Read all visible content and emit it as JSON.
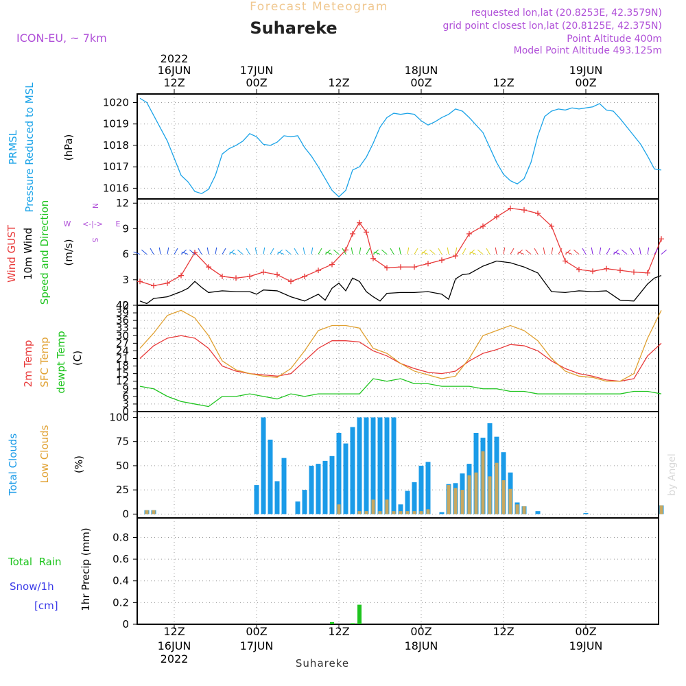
{
  "header": {
    "top_title": "Forecast Meteogram",
    "location": "Suhareke",
    "model": "ICON-EU, ~ 7km",
    "requested": "requested lon,lat (20.8253E, 42.3579N)",
    "grid_point": "grid point closest lon,lat (20.8125E, 42.375N)",
    "point_altitude": "Point Altitude 400m",
    "model_altitude": "Model Point Altitude 493.125m",
    "footer_location": "Suhareke",
    "watermark": "by Angel"
  },
  "colors": {
    "pressure": "#1aa3e8",
    "gust": "#e83a3a",
    "wind": "#000000",
    "temp2m": "#e83a3a",
    "sfc_temp": "#e0a030",
    "dewpt": "#1ec41e",
    "total_clouds": "#1a9be8",
    "low_clouds": "#c8a860",
    "rain": "#1ec41e",
    "snow": "#3a3ae8",
    "header_purple": "#b050d8",
    "title_orange": "#f0c890"
  },
  "top_axis": [
    {
      "hour": "12Z",
      "day": "16JUN",
      "year": "2022"
    },
    {
      "hour": "00Z",
      "day": "17JUN",
      "year": ""
    },
    {
      "hour": "12Z",
      "day": "",
      "year": ""
    },
    {
      "hour": "00Z",
      "day": "18JUN",
      "year": ""
    },
    {
      "hour": "12Z",
      "day": "",
      "year": ""
    },
    {
      "hour": "00Z",
      "day": "19JUN",
      "year": ""
    }
  ],
  "bottom_axis": [
    {
      "hour": "12Z",
      "day": "16JUN",
      "year": "2022"
    },
    {
      "hour": "00Z",
      "day": "17JUN",
      "year": ""
    },
    {
      "hour": "12Z",
      "day": "",
      "year": ""
    },
    {
      "hour": "00Z",
      "day": "18JUN",
      "year": ""
    },
    {
      "hour": "12Z",
      "day": "",
      "year": ""
    },
    {
      "hour": "00Z",
      "day": "19JUN",
      "year": ""
    }
  ],
  "chart_data": [
    {
      "type": "line",
      "panel": "pressure",
      "title": "",
      "labels": {
        "line1": "PRMSL",
        "line2": "Pressure Reduced to MSL",
        "unit": "(hPa)"
      },
      "ylim": [
        1015.5,
        1020.4
      ],
      "yticks": [
        1016,
        1017,
        1018,
        1019,
        1020
      ],
      "x_hours": "hours since 16JUN 2022 07Z",
      "series": [
        {
          "name": "PRMSL",
          "x": [
            0,
            1,
            2,
            3,
            4,
            5,
            6,
            7,
            8,
            9,
            10,
            11,
            12,
            13,
            14,
            15,
            16,
            17,
            18,
            19,
            20,
            21,
            22,
            23,
            24,
            25,
            26,
            27,
            28,
            29,
            30,
            31,
            32,
            33,
            34,
            35,
            36,
            37,
            38,
            39,
            40,
            41,
            42,
            43,
            44,
            45,
            46,
            47,
            48,
            49,
            50,
            51,
            52,
            53,
            54,
            55,
            56,
            57,
            58,
            59,
            60,
            61,
            62,
            63,
            64,
            65,
            66,
            67,
            68,
            69,
            70,
            71,
            72,
            73,
            74,
            75,
            76
          ],
          "y": [
            1020.2,
            1020.0,
            1019.4,
            1018.8,
            1018.2,
            1017.4,
            1016.6,
            1016.3,
            1015.85,
            1015.75,
            1015.95,
            1016.6,
            1017.6,
            1017.85,
            1018.0,
            1018.2,
            1018.55,
            1018.4,
            1018.05,
            1018.0,
            1018.15,
            1018.45,
            1018.4,
            1018.45,
            1017.9,
            1017.5,
            1017.0,
            1016.45,
            1015.9,
            1015.6,
            1015.9,
            1016.85,
            1017.0,
            1017.45,
            1018.1,
            1018.85,
            1019.3,
            1019.5,
            1019.45,
            1019.5,
            1019.45,
            1019.15,
            1018.95,
            1019.1,
            1019.3,
            1019.45,
            1019.7,
            1019.6,
            1019.3,
            1018.95,
            1018.6,
            1017.9,
            1017.2,
            1016.65,
            1016.35,
            1016.2,
            1016.45,
            1017.2,
            1018.45,
            1019.35,
            1019.6,
            1019.7,
            1019.65,
            1019.75,
            1019.7,
            1019.75,
            1019.8,
            1019.95,
            1019.65,
            1019.6,
            1019.25,
            1018.85,
            1018.45,
            1018.05,
            1017.5,
            1016.9,
            1016.85
          ]
        }
      ]
    },
    {
      "type": "line",
      "panel": "wind",
      "title": "",
      "labels": {
        "gust": "Wind GUST",
        "wind": "10m Wind",
        "dir": "Speed and Direction",
        "unit": "(m/s)"
      },
      "ylim": [
        0,
        12.5
      ],
      "yticks": [
        0,
        3,
        6,
        9,
        12
      ],
      "series": [
        {
          "name": "Wind GUST",
          "x": [
            0,
            2,
            4,
            6,
            8,
            10,
            12,
            14,
            16,
            18,
            20,
            22,
            24,
            26,
            28,
            30,
            31,
            32,
            33,
            34,
            36,
            38,
            40,
            42,
            44,
            46,
            48,
            50,
            52,
            54,
            56,
            58,
            60,
            62,
            64,
            66,
            68,
            70,
            72,
            74,
            76
          ],
          "y": [
            2.8,
            2.3,
            2.6,
            3.5,
            6.2,
            4.5,
            3.4,
            3.2,
            3.4,
            3.9,
            3.6,
            2.8,
            3.4,
            4.1,
            4.8,
            6.5,
            8.4,
            9.7,
            8.6,
            5.5,
            4.4,
            4.5,
            4.5,
            4.9,
            5.3,
            5.8,
            8.4,
            9.3,
            10.4,
            11.4,
            11.2,
            10.8,
            9.3,
            5.2,
            4.2,
            4.0,
            4.3,
            4.1,
            3.9,
            3.8,
            7.8
          ]
        },
        {
          "name": "10m Wind",
          "x": [
            0,
            1,
            2,
            4,
            6,
            7,
            8,
            9,
            10,
            12,
            14,
            16,
            17,
            18,
            20,
            22,
            24,
            26,
            27,
            28,
            29,
            30,
            31,
            32,
            33,
            34,
            35,
            36,
            38,
            40,
            42,
            44,
            45,
            46,
            47,
            48,
            50,
            52,
            54,
            56,
            58,
            60,
            62,
            64,
            66,
            68,
            70,
            72,
            74,
            75,
            76
          ],
          "y": [
            0.5,
            0.2,
            0.8,
            1.0,
            1.6,
            2.0,
            2.8,
            2.1,
            1.5,
            1.7,
            1.6,
            1.6,
            1.3,
            1.8,
            1.7,
            1.0,
            0.5,
            1.3,
            0.6,
            2.0,
            2.6,
            1.7,
            3.2,
            2.8,
            1.6,
            1.0,
            0.5,
            1.4,
            1.5,
            1.5,
            1.6,
            1.3,
            0.7,
            3.1,
            3.6,
            3.7,
            4.6,
            5.2,
            5.0,
            4.5,
            3.8,
            1.6,
            1.5,
            1.7,
            1.6,
            1.7,
            0.6,
            0.5,
            2.5,
            3.2,
            3.5
          ]
        }
      ]
    },
    {
      "type": "line",
      "panel": "temperature",
      "title": "",
      "labels": {
        "t2m": "2m Temp",
        "sfc": "SFC Temp",
        "dew": "dewpt Temp",
        "unit": "(C)"
      },
      "ylim": [
        0,
        42
      ],
      "yticks": [
        0,
        3,
        6,
        9,
        12,
        15,
        18,
        21,
        24,
        27,
        30,
        33,
        36,
        39,
        42
      ],
      "series": [
        {
          "name": "2m Temp",
          "x": [
            0,
            2,
            4,
            6,
            8,
            10,
            12,
            14,
            16,
            18,
            20,
            22,
            24,
            26,
            28,
            30,
            32,
            34,
            36,
            38,
            40,
            42,
            44,
            46,
            48,
            50,
            52,
            54,
            56,
            58,
            60,
            62,
            64,
            66,
            68,
            70,
            72,
            74,
            76
          ],
          "y": [
            21,
            26,
            29,
            30,
            29,
            25,
            18,
            16,
            15,
            14.5,
            14,
            15,
            20,
            25,
            28,
            28,
            27.5,
            24,
            22,
            19,
            17,
            15.5,
            15,
            16,
            20,
            23,
            24.5,
            26.5,
            26,
            24,
            20,
            17,
            15,
            14,
            12.5,
            12,
            13,
            22,
            27
          ]
        },
        {
          "name": "SFC Temp",
          "x": [
            0,
            2,
            4,
            6,
            8,
            10,
            12,
            14,
            16,
            18,
            20,
            22,
            24,
            26,
            28,
            30,
            32,
            34,
            36,
            38,
            40,
            42,
            44,
            46,
            48,
            50,
            52,
            54,
            56,
            58,
            60,
            62,
            64,
            66,
            68,
            70,
            72,
            74,
            76
          ],
          "y": [
            25,
            31,
            38,
            40,
            37,
            30,
            20,
            16.5,
            15,
            14,
            13.5,
            17,
            24,
            32,
            34,
            34,
            33,
            25,
            23,
            19,
            16,
            14.5,
            13,
            14,
            21,
            30,
            32,
            34,
            32,
            28,
            21,
            16,
            14,
            13.5,
            12,
            12,
            15,
            29,
            40
          ]
        },
        {
          "name": "dewpt Temp",
          "x": [
            0,
            2,
            4,
            6,
            8,
            10,
            12,
            14,
            16,
            18,
            20,
            22,
            24,
            26,
            28,
            30,
            32,
            34,
            36,
            38,
            40,
            42,
            44,
            46,
            48,
            50,
            52,
            54,
            56,
            58,
            60,
            62,
            64,
            66,
            68,
            70,
            72,
            74,
            76
          ],
          "y": [
            10,
            9,
            6,
            4,
            3,
            2,
            6,
            6,
            7,
            6,
            5,
            7,
            6,
            7,
            7,
            7,
            7,
            13,
            12,
            13,
            11,
            11,
            10,
            10,
            10,
            9,
            9,
            8,
            8,
            7,
            7,
            7,
            7,
            7,
            7,
            7,
            8,
            8,
            7
          ]
        }
      ]
    },
    {
      "type": "bar",
      "panel": "clouds",
      "title": "",
      "labels": {
        "total": "Total Clouds",
        "low": "Low Clouds",
        "unit": "(%)"
      },
      "ylim": [
        -4,
        106
      ],
      "yticks": [
        0,
        25,
        50,
        75,
        100
      ],
      "series": [
        {
          "name": "Total Clouds",
          "x": [
            1,
            2,
            17,
            18,
            19,
            20,
            21,
            22,
            23,
            24,
            25,
            26,
            27,
            28,
            29,
            30,
            31,
            32,
            33,
            34,
            35,
            36,
            37,
            38,
            39,
            40,
            41,
            42,
            43,
            44,
            45,
            46,
            47,
            48,
            49,
            50,
            51,
            52,
            53,
            54,
            55,
            56,
            58,
            65,
            76
          ],
          "y": [
            4,
            4,
            30,
            100,
            77,
            34,
            58,
            0,
            13,
            25,
            50,
            52,
            55,
            60,
            84,
            73,
            90,
            100,
            100,
            100,
            100,
            100,
            100,
            10,
            24,
            33,
            50,
            54,
            0,
            2,
            31,
            32,
            42,
            52,
            84,
            79,
            94,
            80,
            64,
            43,
            12,
            8,
            3,
            1,
            9
          ]
        },
        {
          "name": "Low Clouds",
          "x": [
            1,
            2,
            29,
            32,
            33,
            34,
            35,
            36,
            37,
            38,
            39,
            40,
            41,
            42,
            45,
            46,
            47,
            48,
            49,
            50,
            51,
            52,
            53,
            54,
            55,
            56,
            76
          ],
          "y": [
            4,
            4,
            10,
            3,
            3,
            15,
            3,
            15,
            3,
            3,
            3,
            3,
            3,
            5,
            30,
            27,
            25,
            40,
            43,
            65,
            39,
            53,
            35,
            26,
            10,
            8,
            9
          ]
        }
      ]
    },
    {
      "type": "bar",
      "panel": "precip",
      "title": "",
      "labels": {
        "rain": "Total  Rain",
        "snow": "Snow/1h",
        "snow_unit": "[cm]",
        "axis": "1hr Precip (mm)"
      },
      "ylim": [
        0,
        0.98
      ],
      "yticks": [
        0,
        0.2,
        0.4,
        0.6,
        0.8
      ],
      "ytick_labels": [
        "0",
        "0.2",
        "0.4",
        "0.6",
        "0.8"
      ],
      "series": [
        {
          "name": "Total Rain",
          "x": [
            28,
            31,
            32
          ],
          "y": [
            0.02,
            0.01,
            0.18
          ]
        }
      ]
    }
  ]
}
